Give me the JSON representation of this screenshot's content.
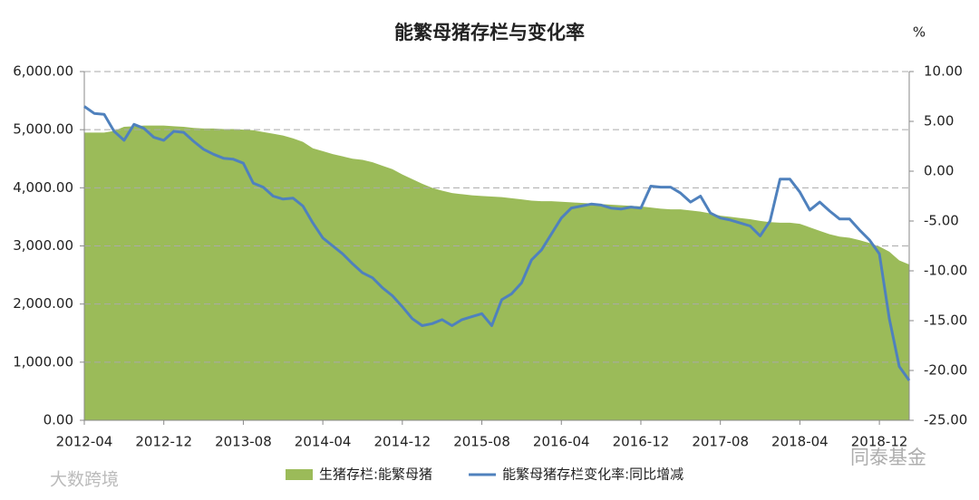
{
  "chart_data": {
    "type": "combo",
    "title": "能繁母猪存栏与变化率",
    "y2_unit": "%",
    "categories": [
      "2012-04",
      null,
      null,
      null,
      null,
      null,
      null,
      null,
      "2012-12",
      null,
      null,
      null,
      null,
      null,
      null,
      null,
      "2013-08",
      null,
      null,
      null,
      null,
      null,
      null,
      null,
      "2014-04",
      null,
      null,
      null,
      null,
      null,
      null,
      null,
      "2014-12",
      null,
      null,
      null,
      null,
      null,
      null,
      null,
      "2015-08",
      null,
      null,
      null,
      null,
      null,
      null,
      null,
      "2016-04",
      null,
      null,
      null,
      null,
      null,
      null,
      null,
      "2016-12",
      null,
      null,
      null,
      null,
      null,
      null,
      null,
      "2017-08",
      null,
      null,
      null,
      null,
      null,
      null,
      null,
      "2018-04",
      null,
      null,
      null,
      null,
      null,
      null,
      null,
      "2018-12",
      null,
      null,
      null
    ],
    "series": [
      {
        "name": "生猪存栏:能繁母猪",
        "type": "area",
        "color": "#9bbb59",
        "values": [
          4950,
          4950,
          4950,
          4980,
          5050,
          5060,
          5070,
          5070,
          5070,
          5060,
          5050,
          5030,
          5020,
          5020,
          5010,
          5010,
          5000,
          4990,
          4960,
          4930,
          4900,
          4850,
          4790,
          4680,
          4630,
          4580,
          4540,
          4500,
          4480,
          4440,
          4380,
          4320,
          4230,
          4150,
          4070,
          4000,
          3950,
          3910,
          3890,
          3870,
          3860,
          3850,
          3840,
          3820,
          3800,
          3780,
          3770,
          3770,
          3760,
          3750,
          3740,
          3730,
          3720,
          3710,
          3700,
          3690,
          3680,
          3660,
          3640,
          3630,
          3630,
          3610,
          3590,
          3560,
          3520,
          3500,
          3480,
          3460,
          3430,
          3410,
          3400,
          3400,
          3380,
          3320,
          3260,
          3200,
          3160,
          3140,
          3100,
          3050,
          2990,
          2900,
          2750,
          2680
        ]
      },
      {
        "name": "能繁母猪存栏变化率:同比增减",
        "type": "line",
        "color": "#4f81bd",
        "axis": "y2",
        "values": [
          6.5,
          5.8,
          5.7,
          4.0,
          3.1,
          4.7,
          4.3,
          3.4,
          3.1,
          4.0,
          3.9,
          3.0,
          2.2,
          1.7,
          1.3,
          1.2,
          0.8,
          -1.2,
          -1.6,
          -2.5,
          -2.8,
          -2.7,
          -3.5,
          -5.2,
          -6.7,
          -7.5,
          -8.3,
          -9.3,
          -10.2,
          -10.7,
          -11.7,
          -12.5,
          -13.6,
          -14.8,
          -15.5,
          -15.3,
          -14.9,
          -15.5,
          -14.9,
          -14.6,
          -14.3,
          -15.5,
          -12.9,
          -12.3,
          -11.2,
          -8.9,
          -7.9,
          -6.3,
          -4.7,
          -3.7,
          -3.5,
          -3.3,
          -3.4,
          -3.7,
          -3.8,
          -3.6,
          -3.7,
          -1.5,
          -1.6,
          -1.6,
          -2.2,
          -3.1,
          -2.5,
          -4.2,
          -4.7,
          -4.9,
          -5.2,
          -5.5,
          -6.5,
          -5.0,
          -0.8,
          -0.8,
          -2.1,
          -3.9,
          -3.1,
          -4.0,
          -4.8,
          -4.8,
          -5.9,
          -6.9,
          -8.3,
          -14.8,
          -19.6,
          -21.0
        ]
      }
    ],
    "ylim": [
      0,
      6000
    ],
    "yticks": [
      {
        "value": 0,
        "label": "0.00"
      },
      {
        "value": 1000,
        "label": "1,000.00"
      },
      {
        "value": 2000,
        "label": "2,000.00"
      },
      {
        "value": 3000,
        "label": "3,000.00"
      },
      {
        "value": 4000,
        "label": "4,000.00"
      },
      {
        "value": 5000,
        "label": "5,000.00"
      },
      {
        "value": 6000,
        "label": "6,000.00"
      }
    ],
    "y2lim": [
      -25,
      10
    ],
    "y2ticks": [
      {
        "value": -25,
        "label": "-25.00"
      },
      {
        "value": -20,
        "label": "-20.00"
      },
      {
        "value": -15,
        "label": "-15.00"
      },
      {
        "value": -10,
        "label": "-10.00"
      },
      {
        "value": -5,
        "label": "-5.00"
      },
      {
        "value": 0,
        "label": "0.00"
      },
      {
        "value": 5,
        "label": "5.00"
      },
      {
        "value": 10,
        "label": "10.00"
      }
    ],
    "grid": true,
    "legend": "bottom"
  },
  "watermarks": [
    "大数跨境",
    "同泰基金"
  ]
}
